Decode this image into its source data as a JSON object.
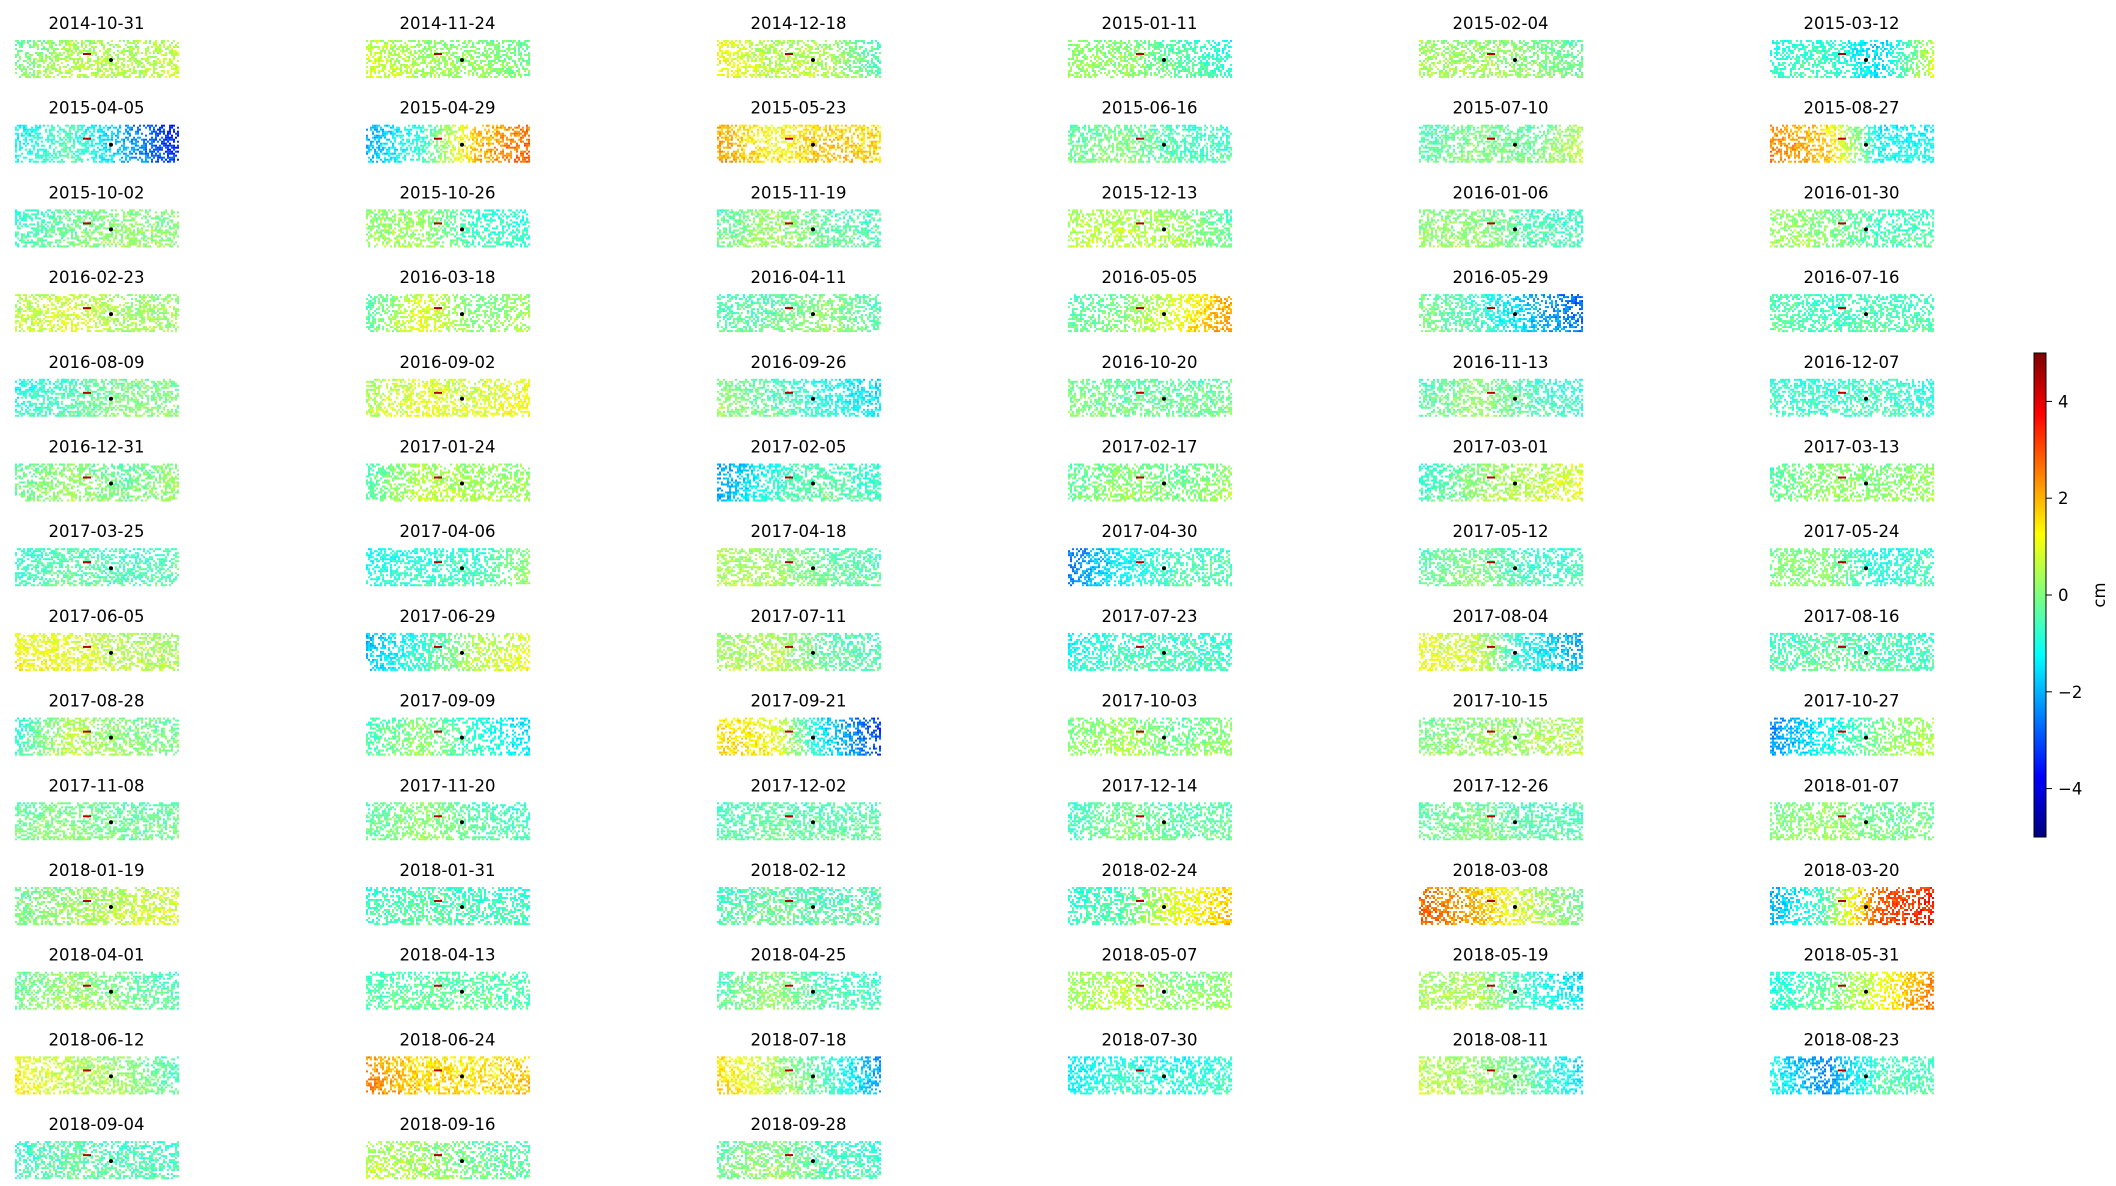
{
  "chart_data": {
    "type": "heatmap",
    "description_source": "grid of displacement maps",
    "columns": 6,
    "panels": [
      {
        "title": "2014-10-31",
        "tint": [
          -0.1,
          0.5,
          0.4,
          0.7
        ]
      },
      {
        "title": "2014-11-24",
        "tint": [
          0.8,
          0.3,
          0.2,
          -0.2
        ]
      },
      {
        "title": "2014-12-18",
        "tint": [
          1.2,
          0.5,
          0.5,
          -0.5
        ]
      },
      {
        "title": "2015-01-11",
        "tint": [
          0.2,
          0.2,
          -0.3,
          -0.9
        ]
      },
      {
        "title": "2015-02-04",
        "tint": [
          0.4,
          0.3,
          0.1,
          -0.3
        ]
      },
      {
        "title": "2015-03-12",
        "tint": [
          -0.8,
          -0.6,
          -1.6,
          0.8
        ]
      },
      {
        "title": "2015-04-05",
        "tint": [
          -1.2,
          -0.5,
          -2.0,
          -3.5
        ]
      },
      {
        "title": "2015-04-29",
        "tint": [
          -2.0,
          -0.8,
          1.8,
          2.8
        ]
      },
      {
        "title": "2015-05-23",
        "tint": [
          2.2,
          1.2,
          1.8,
          1.6
        ]
      },
      {
        "title": "2015-06-16",
        "tint": [
          -0.3,
          0.0,
          -0.6,
          -0.6
        ]
      },
      {
        "title": "2015-07-10",
        "tint": [
          -0.5,
          0.0,
          -0.3,
          0.6
        ]
      },
      {
        "title": "2015-08-27",
        "tint": [
          2.4,
          1.8,
          -1.2,
          -1.2
        ]
      },
      {
        "title": "2015-10-02",
        "tint": [
          -0.7,
          -0.2,
          0.2,
          0.1
        ]
      },
      {
        "title": "2015-10-26",
        "tint": [
          0.2,
          0.3,
          -0.7,
          -0.8
        ]
      },
      {
        "title": "2015-11-19",
        "tint": [
          -0.3,
          0.3,
          -0.3,
          -0.5
        ]
      },
      {
        "title": "2015-12-13",
        "tint": [
          0.5,
          0.6,
          0.3,
          -0.4
        ]
      },
      {
        "title": "2016-01-06",
        "tint": [
          0.1,
          0.2,
          -0.5,
          -0.7
        ]
      },
      {
        "title": "2016-01-30",
        "tint": [
          0.3,
          0.1,
          -0.6,
          -0.5
        ]
      },
      {
        "title": "2016-02-23",
        "tint": [
          0.5,
          0.9,
          0.3,
          0.3
        ]
      },
      {
        "title": "2016-03-18",
        "tint": [
          -0.5,
          1.0,
          0.0,
          0.4
        ]
      },
      {
        "title": "2016-04-11",
        "tint": [
          -0.5,
          -0.3,
          0.2,
          -0.5
        ]
      },
      {
        "title": "2016-05-05",
        "tint": [
          -0.4,
          0.0,
          1.0,
          2.3
        ]
      },
      {
        "title": "2016-05-29",
        "tint": [
          0.0,
          -0.6,
          -1.8,
          -2.8
        ]
      },
      {
        "title": "2016-07-16",
        "tint": [
          -0.4,
          -0.6,
          -0.5,
          -0.6
        ]
      },
      {
        "title": "2016-08-09",
        "tint": [
          -1.0,
          -0.5,
          0.0,
          0.0
        ]
      },
      {
        "title": "2016-09-02",
        "tint": [
          0.4,
          1.0,
          0.8,
          1.2
        ]
      },
      {
        "title": "2016-09-26",
        "tint": [
          0.2,
          -0.4,
          -1.0,
          -1.5
        ]
      },
      {
        "title": "2016-10-20",
        "tint": [
          0.0,
          -0.2,
          -0.3,
          -0.1
        ]
      },
      {
        "title": "2016-11-13",
        "tint": [
          -0.5,
          0.2,
          -0.5,
          -0.8
        ]
      },
      {
        "title": "2016-12-07",
        "tint": [
          -0.6,
          -0.8,
          -0.6,
          -0.9
        ]
      },
      {
        "title": "2016-12-31",
        "tint": [
          -0.2,
          0.3,
          -0.2,
          0.3
        ]
      },
      {
        "title": "2017-01-24",
        "tint": [
          -0.5,
          0.6,
          0.3,
          0.3
        ]
      },
      {
        "title": "2017-02-05",
        "tint": [
          -2.2,
          -0.8,
          -0.3,
          -0.8
        ]
      },
      {
        "title": "2017-02-17",
        "tint": [
          -0.3,
          0.2,
          -0.2,
          0.3
        ]
      },
      {
        "title": "2017-03-01",
        "tint": [
          -0.8,
          0.1,
          0.5,
          1.0
        ]
      },
      {
        "title": "2017-03-13",
        "tint": [
          -0.4,
          0.2,
          0.0,
          0.3
        ]
      },
      {
        "title": "2017-03-25",
        "tint": [
          -0.8,
          -0.3,
          -0.6,
          -0.4
        ]
      },
      {
        "title": "2017-04-06",
        "tint": [
          -1.0,
          -0.8,
          -0.7,
          0.3
        ]
      },
      {
        "title": "2017-04-18",
        "tint": [
          0.5,
          0.3,
          -0.3,
          -0.5
        ]
      },
      {
        "title": "2017-04-30",
        "tint": [
          -2.5,
          -1.2,
          -0.6,
          -0.5
        ]
      },
      {
        "title": "2017-05-12",
        "tint": [
          -0.4,
          0.0,
          -0.7,
          -0.6
        ]
      },
      {
        "title": "2017-05-24",
        "tint": [
          0.0,
          0.1,
          -1.0,
          -0.6
        ]
      },
      {
        "title": "2017-06-05",
        "tint": [
          1.2,
          1.0,
          0.5,
          0.4
        ]
      },
      {
        "title": "2017-06-29",
        "tint": [
          -1.8,
          -0.8,
          0.5,
          1.0
        ]
      },
      {
        "title": "2017-07-11",
        "tint": [
          0.3,
          0.6,
          -0.3,
          -0.5
        ]
      },
      {
        "title": "2017-07-23",
        "tint": [
          -1.2,
          -0.6,
          -0.6,
          -0.8
        ]
      },
      {
        "title": "2017-08-04",
        "tint": [
          1.0,
          0.8,
          -1.2,
          -2.0
        ]
      },
      {
        "title": "2017-08-16",
        "tint": [
          -0.6,
          -0.3,
          -0.5,
          -0.7
        ]
      },
      {
        "title": "2017-08-28",
        "tint": [
          -0.8,
          0.6,
          0.1,
          -0.2
        ]
      },
      {
        "title": "2017-09-09",
        "tint": [
          -0.6,
          0.2,
          -0.8,
          -1.5
        ]
      },
      {
        "title": "2017-09-21",
        "tint": [
          1.6,
          1.2,
          -1.5,
          -3.2
        ]
      },
      {
        "title": "2017-10-03",
        "tint": [
          0.0,
          0.4,
          -0.2,
          0.2
        ]
      },
      {
        "title": "2017-10-15",
        "tint": [
          0.0,
          0.2,
          0.3,
          0.6
        ]
      },
      {
        "title": "2017-10-27",
        "tint": [
          -2.3,
          -1.2,
          0.0,
          0.5
        ]
      },
      {
        "title": "2017-11-08",
        "tint": [
          -0.2,
          0.1,
          -0.3,
          -0.2
        ]
      },
      {
        "title": "2017-11-20",
        "tint": [
          -0.4,
          0.2,
          -0.4,
          -0.6
        ]
      },
      {
        "title": "2017-12-02",
        "tint": [
          -0.6,
          -0.3,
          -0.4,
          -0.4
        ]
      },
      {
        "title": "2017-12-14",
        "tint": [
          -0.7,
          0.0,
          -0.4,
          -0.3
        ]
      },
      {
        "title": "2017-12-26",
        "tint": [
          -0.3,
          0.0,
          -0.5,
          -0.5
        ]
      },
      {
        "title": "2018-01-07",
        "tint": [
          -0.1,
          0.3,
          -0.2,
          -0.1
        ]
      },
      {
        "title": "2018-01-19",
        "tint": [
          -0.1,
          0.2,
          0.6,
          0.9
        ]
      },
      {
        "title": "2018-01-31",
        "tint": [
          -0.7,
          -0.4,
          -0.6,
          -0.7
        ]
      },
      {
        "title": "2018-02-12",
        "tint": [
          -0.6,
          -0.2,
          -0.5,
          -0.3
        ]
      },
      {
        "title": "2018-02-24",
        "tint": [
          -0.8,
          -0.4,
          1.0,
          1.8
        ]
      },
      {
        "title": "2018-03-08",
        "tint": [
          2.8,
          2.0,
          0.6,
          -0.2
        ]
      },
      {
        "title": "2018-03-20",
        "tint": [
          -2.0,
          -0.4,
          2.8,
          3.5
        ]
      },
      {
        "title": "2018-04-01",
        "tint": [
          -0.2,
          0.3,
          -0.1,
          -0.6
        ]
      },
      {
        "title": "2018-04-13",
        "tint": [
          -0.5,
          -0.3,
          -0.3,
          -0.5
        ]
      },
      {
        "title": "2018-04-25",
        "tint": [
          -0.4,
          0.2,
          -0.6,
          -0.6
        ]
      },
      {
        "title": "2018-05-07",
        "tint": [
          0.3,
          0.6,
          0.0,
          0.2
        ]
      },
      {
        "title": "2018-05-19",
        "tint": [
          0.3,
          0.5,
          -0.8,
          -1.6
        ]
      },
      {
        "title": "2018-05-31",
        "tint": [
          -1.0,
          -0.3,
          1.0,
          2.6
        ]
      },
      {
        "title": "2018-06-12",
        "tint": [
          1.3,
          0.6,
          0.2,
          -0.6
        ]
      },
      {
        "title": "2018-06-24",
        "tint": [
          2.4,
          1.6,
          1.5,
          1.8
        ]
      },
      {
        "title": "2018-07-18",
        "tint": [
          1.6,
          0.6,
          -0.6,
          -2.2
        ]
      },
      {
        "title": "2018-07-30",
        "tint": [
          -1.3,
          -0.8,
          -1.0,
          -0.7
        ]
      },
      {
        "title": "2018-08-11",
        "tint": [
          0.6,
          0.3,
          -0.3,
          -1.5
        ]
      },
      {
        "title": "2018-08-23",
        "tint": [
          -1.0,
          -2.4,
          -0.5,
          -0.6
        ]
      },
      {
        "title": "2018-09-04",
        "tint": [
          -0.7,
          -0.3,
          -0.5,
          -0.6
        ]
      },
      {
        "title": "2018-09-16",
        "tint": [
          0.5,
          0.4,
          -0.2,
          -0.5
        ]
      },
      {
        "title": "2018-09-28",
        "tint": [
          -0.3,
          0.2,
          -0.5,
          -0.7
        ]
      }
    ],
    "colorbar": {
      "label": "cm",
      "range": [
        -5,
        5
      ],
      "ticks": [
        -4,
        -2,
        0,
        2,
        4
      ],
      "tick_labels": [
        "−4",
        "−2",
        "0",
        "2",
        "4"
      ],
      "colormap": "jet"
    }
  }
}
